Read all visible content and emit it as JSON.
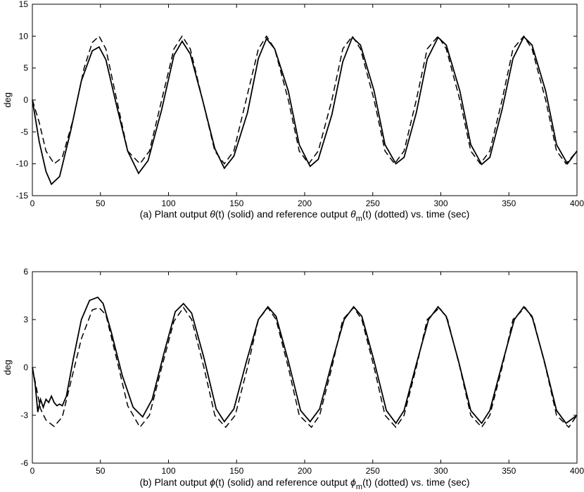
{
  "chart_data": [
    {
      "type": "line",
      "panel": "a",
      "ylabel": "deg",
      "xlim": [
        0,
        400
      ],
      "ylim": [
        -15,
        15
      ],
      "xticks": [
        0,
        50,
        100,
        150,
        200,
        250,
        300,
        350,
        400
      ],
      "yticks": [
        -15,
        -10,
        -5,
        0,
        5,
        10,
        15
      ],
      "grid": false,
      "caption": {
        "prefix": "(a) Plant output ",
        "sym1": "θ",
        "after1": "(t) (solid) and reference output ",
        "sym2": "θ",
        "sub2": "m",
        "after2": "(t) (dotted) vs. time (sec)"
      },
      "series": [
        {
          "style": "solid",
          "x": [
            0,
            5,
            10,
            14,
            20,
            28,
            36,
            44,
            49,
            54,
            62,
            70,
            78,
            85,
            95,
            104,
            110,
            116,
            125,
            134,
            141,
            148,
            158,
            166,
            172,
            178,
            188,
            196,
            204,
            210,
            220,
            228,
            235,
            241,
            251,
            259,
            267,
            273,
            282,
            290,
            298,
            304,
            314,
            322,
            330,
            336,
            345,
            353,
            361,
            367,
            377,
            385,
            393,
            400
          ],
          "y": [
            0,
            -6.5,
            -11.2,
            -13.2,
            -12,
            -5,
            3,
            7.7,
            8.3,
            6.3,
            -1,
            -8,
            -11.5,
            -9.5,
            -1.5,
            7,
            9.2,
            7.2,
            0,
            -7.6,
            -10.7,
            -8.8,
            -2,
            6.5,
            9.6,
            8,
            1.4,
            -7,
            -10.4,
            -9.3,
            -2.3,
            6,
            9.8,
            8.6,
            1.4,
            -7,
            -10,
            -9,
            -2,
            6.4,
            9.8,
            8.6,
            1.4,
            -7,
            -10.1,
            -9,
            -1.5,
            6.5,
            9.9,
            8.6,
            1.4,
            -7,
            -10,
            -8
          ]
        },
        {
          "style": "dashed",
          "x": [
            0,
            5,
            10,
            16,
            22,
            30,
            38,
            44,
            49,
            54,
            62,
            70,
            79,
            86,
            95,
            104,
            110,
            116,
            125,
            134,
            141,
            148,
            157,
            166,
            172,
            178,
            188,
            196,
            203,
            210,
            220,
            228,
            235,
            241,
            251,
            259,
            266,
            273,
            282,
            290,
            298,
            304,
            314,
            322,
            329,
            336,
            345,
            353,
            361,
            367,
            377,
            385,
            392,
            400
          ],
          "y": [
            0,
            -3.5,
            -8,
            -10,
            -9,
            -3,
            5,
            9,
            10,
            8,
            0,
            -8,
            -10,
            -8,
            0,
            8,
            10,
            8,
            0,
            -8,
            -10,
            -8,
            0,
            8,
            10,
            8,
            0,
            -8,
            -10,
            -8,
            0,
            8,
            10,
            8,
            0,
            -8,
            -10,
            -8,
            0,
            8,
            10,
            8,
            0,
            -8,
            -10,
            -8,
            0,
            8,
            10,
            8,
            0,
            -8,
            -10,
            -8
          ]
        }
      ]
    },
    {
      "type": "line",
      "panel": "b",
      "ylabel": "deg",
      "xlim": [
        0,
        400
      ],
      "ylim": [
        -6,
        6
      ],
      "xticks": [
        0,
        50,
        100,
        150,
        200,
        250,
        300,
        350,
        400
      ],
      "yticks": [
        -6,
        -3,
        0,
        3,
        6
      ],
      "grid": false,
      "caption": {
        "prefix": "(b) Plant output ",
        "sym1": "ϕ",
        "after1": "(t) (solid) and reference output ",
        "sym2": "ϕ",
        "sub2": "m",
        "after2": "(t) (dotted) vs. time (sec)"
      },
      "series": [
        {
          "style": "solid",
          "x": [
            0,
            2,
            4,
            6,
            8,
            10,
            12,
            14,
            16,
            18,
            20,
            22,
            25,
            30,
            36,
            42,
            48,
            52,
            58,
            66,
            74,
            81,
            88,
            97,
            105,
            111,
            117,
            126,
            135,
            141,
            148,
            157,
            166,
            173,
            179,
            188,
            197,
            204,
            211,
            220,
            229,
            236,
            242,
            251,
            260,
            267,
            273,
            282,
            291,
            298,
            304,
            313,
            322,
            330,
            336,
            345,
            354,
            361,
            367,
            376,
            385,
            392,
            400
          ],
          "y": [
            0,
            -1,
            -2.8,
            -2,
            -2.5,
            -2,
            -2.2,
            -1.8,
            -2.2,
            -2.4,
            -2.3,
            -2.4,
            -1.8,
            0.5,
            3,
            4.2,
            4.4,
            4,
            2.2,
            -0.5,
            -2.5,
            -3.1,
            -2,
            1,
            3.5,
            4,
            3.4,
            0.6,
            -2.6,
            -3.4,
            -2.6,
            0.3,
            3,
            3.8,
            3.2,
            0.4,
            -2.7,
            -3.4,
            -2.6,
            0.3,
            3,
            3.8,
            3.2,
            0.4,
            -2.7,
            -3.5,
            -2.7,
            0.2,
            3,
            3.8,
            3.2,
            0.4,
            -2.7,
            -3.5,
            -2.7,
            0.2,
            3,
            3.8,
            3.2,
            0.4,
            -2.7,
            -3.5,
            -3
          ]
        },
        {
          "style": "dashed",
          "x": [
            0,
            3,
            6,
            10,
            16,
            22,
            28,
            36,
            44,
            49,
            54,
            62,
            70,
            79,
            86,
            95,
            104,
            111,
            117,
            126,
            134,
            142,
            149,
            158,
            166,
            173,
            179,
            188,
            196,
            205,
            211,
            220,
            228,
            236,
            242,
            251,
            259,
            267,
            273,
            282,
            290,
            299,
            305,
            314,
            322,
            330,
            336,
            345,
            353,
            362,
            368,
            377,
            385,
            394,
            400
          ],
          "y": [
            0,
            -1.3,
            -2.6,
            -3.3,
            -3.7,
            -3.1,
            -1,
            1.8,
            3.6,
            3.75,
            3.3,
            0.5,
            -2.4,
            -3.75,
            -3,
            0,
            2.9,
            3.75,
            3,
            0,
            -3,
            -3.75,
            -3,
            0,
            3,
            3.75,
            3,
            0,
            -3,
            -3.75,
            -3,
            0,
            3,
            3.75,
            3,
            0,
            -3,
            -3.75,
            -3,
            0,
            3,
            3.75,
            3,
            0,
            -3,
            -3.75,
            -3,
            0,
            3,
            3.75,
            3,
            0,
            -3,
            -3.75,
            -3
          ]
        }
      ]
    }
  ]
}
